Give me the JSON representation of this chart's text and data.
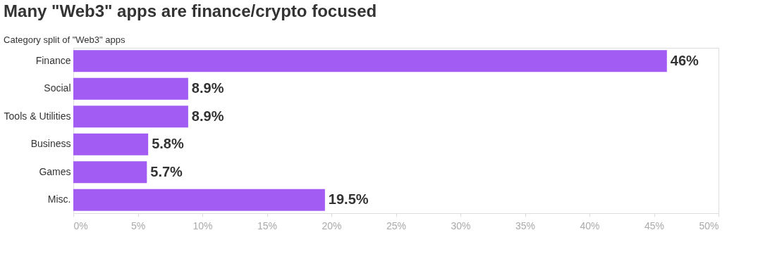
{
  "chart_data": {
    "type": "bar",
    "orientation": "horizontal",
    "title": "Many \"Web3\" apps are finance/crypto focused",
    "subtitle": "Category split of \"Web3\" apps",
    "categories": [
      "Finance",
      "Social",
      "Tools & Utilities",
      "Business",
      "Games",
      "Misc."
    ],
    "values": [
      46,
      8.9,
      8.9,
      5.8,
      5.7,
      19.5
    ],
    "value_labels": [
      "46%",
      "8.9%",
      "8.9%",
      "5.8%",
      "5.7%",
      "19.5%"
    ],
    "color": "#a25cf4",
    "xlim": [
      0,
      50
    ],
    "xticks": [
      {
        "value": 0,
        "label": "0%"
      },
      {
        "value": 5,
        "label": "5%"
      },
      {
        "value": 10,
        "label": "10%"
      },
      {
        "value": 15,
        "label": "15%"
      },
      {
        "value": 20,
        "label": "20%"
      },
      {
        "value": 25,
        "label": "25%"
      },
      {
        "value": 30,
        "label": "30%"
      },
      {
        "value": 35,
        "label": "35%"
      },
      {
        "value": 40,
        "label": "40%"
      },
      {
        "value": 45,
        "label": "45%"
      },
      {
        "value": 50,
        "label": "50%"
      }
    ],
    "grid": false
  }
}
